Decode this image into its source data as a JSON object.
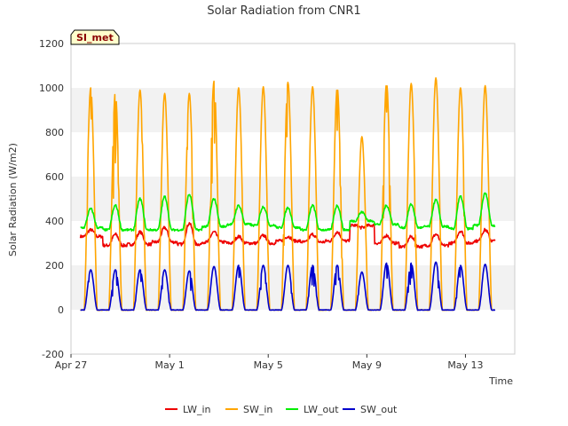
{
  "chart_data": {
    "type": "line",
    "title": "Solar Radiation from CNR1",
    "xlabel": "Time",
    "ylabel": "Solar Radiation (W/m2)",
    "badge": "SI_met",
    "ylim": [
      -200,
      1200
    ],
    "yticks": [
      -200,
      0,
      200,
      400,
      600,
      800,
      1000,
      1200
    ],
    "xlim_days": [
      0,
      18
    ],
    "xticks": [
      {
        "label": "Apr 27",
        "day": 0
      },
      {
        "label": "May 1",
        "day": 4
      },
      {
        "label": "May 5",
        "day": 8
      },
      {
        "label": "May 9",
        "day": 12
      },
      {
        "label": "May 13",
        "day": 16
      }
    ],
    "grid": "horizontal bands",
    "legend": "bottom",
    "day_centers": [
      0.8,
      1.8,
      2.8,
      3.8,
      4.8,
      5.8,
      6.8,
      7.8,
      8.8,
      9.8,
      10.8,
      11.8,
      12.8,
      13.8,
      14.8,
      15.8,
      16.8
    ],
    "series": [
      {
        "name": "LW_in",
        "color": "#ee0000",
        "kind": "lw_in",
        "daily_min": [
          330,
          290,
          295,
          305,
          295,
          305,
          300,
          300,
          310,
          305,
          310,
          380,
          300,
          285,
          290,
          300,
          310
        ],
        "daily_max": [
          360,
          340,
          350,
          370,
          390,
          350,
          330,
          335,
          330,
          340,
          350,
          370,
          335,
          330,
          340,
          355,
          360
        ]
      },
      {
        "name": "SW_in",
        "color": "#ffa500",
        "kind": "sw_in",
        "daily_peak": [
          1000,
          980,
          990,
          975,
          975,
          1030,
          1000,
          1005,
          1025,
          1005,
          1000,
          780,
          1020,
          1020,
          1045,
          1000,
          1010
        ]
      },
      {
        "name": "LW_out",
        "color": "#00ee00",
        "kind": "lw_out",
        "daily_min": [
          370,
          360,
          360,
          360,
          360,
          375,
          385,
          380,
          370,
          360,
          360,
          400,
          385,
          370,
          375,
          365,
          380
        ],
        "daily_max": [
          455,
          470,
          500,
          510,
          520,
          500,
          470,
          465,
          460,
          470,
          470,
          440,
          470,
          475,
          495,
          510,
          525
        ]
      },
      {
        "name": "SW_out",
        "color": "#0000cc",
        "kind": "sw_out",
        "daily_peak": [
          180,
          180,
          180,
          180,
          175,
          195,
          200,
          200,
          200,
          200,
          200,
          170,
          210,
          210,
          215,
          200,
          205
        ]
      }
    ]
  }
}
